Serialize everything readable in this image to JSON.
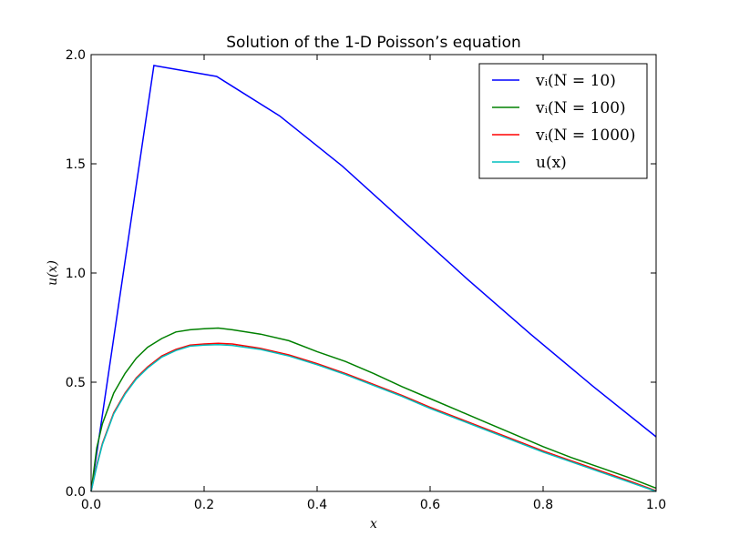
{
  "chart_data": {
    "type": "line",
    "title": "Solution of the 1-D Poisson’s equation",
    "xlabel": "x",
    "ylabel": "u(x)",
    "xlim": [
      0.0,
      1.0
    ],
    "ylim": [
      0.0,
      2.0
    ],
    "xticks": [
      "0.0",
      "0.2",
      "0.4",
      "0.6",
      "0.8",
      "1.0"
    ],
    "yticks": [
      "0.0",
      "0.5",
      "1.0",
      "1.5",
      "2.0"
    ],
    "grid": false,
    "legend_position": "top-right",
    "series": [
      {
        "name": "v_i(N = 10)",
        "label": "vᵢ(N = 10)",
        "color": "#0000ff",
        "x": [
          0.0,
          0.1111,
          0.2222,
          0.3333,
          0.4444,
          0.5556,
          0.6667,
          0.7778,
          0.8889,
          1.0
        ],
        "y": [
          0.0,
          1.95,
          1.9,
          1.72,
          1.49,
          1.23,
          0.97,
          0.72,
          0.48,
          0.25
        ]
      },
      {
        "name": "v_i(N = 100)",
        "label": "vᵢ(N = 100)",
        "color": "#008000",
        "x": [
          0.0,
          0.01,
          0.02,
          0.04,
          0.06,
          0.08,
          0.1,
          0.125,
          0.15,
          0.175,
          0.2,
          0.225,
          0.25,
          0.3,
          0.35,
          0.4,
          0.45,
          0.5,
          0.55,
          0.6,
          0.65,
          0.7,
          0.75,
          0.8,
          0.85,
          0.9,
          0.95,
          1.0
        ],
        "y": [
          0.0,
          0.2,
          0.31,
          0.45,
          0.54,
          0.61,
          0.66,
          0.7,
          0.73,
          0.74,
          0.745,
          0.748,
          0.74,
          0.72,
          0.69,
          0.64,
          0.595,
          0.54,
          0.48,
          0.425,
          0.37,
          0.315,
          0.26,
          0.205,
          0.155,
          0.11,
          0.065,
          0.015
        ]
      },
      {
        "name": "v_i(N = 1000)",
        "label": "vᵢ(N = 1000)",
        "color": "#ff0000",
        "x": [
          0.0,
          0.01,
          0.02,
          0.04,
          0.06,
          0.08,
          0.1,
          0.125,
          0.15,
          0.175,
          0.2,
          0.225,
          0.25,
          0.3,
          0.35,
          0.4,
          0.45,
          0.5,
          0.55,
          0.6,
          0.65,
          0.7,
          0.75,
          0.8,
          0.85,
          0.9,
          0.95,
          1.0
        ],
        "y": [
          0.0,
          0.12,
          0.22,
          0.36,
          0.45,
          0.52,
          0.57,
          0.62,
          0.65,
          0.67,
          0.675,
          0.678,
          0.675,
          0.655,
          0.625,
          0.585,
          0.54,
          0.49,
          0.44,
          0.385,
          0.335,
          0.285,
          0.235,
          0.185,
          0.14,
          0.095,
          0.05,
          0.003
        ]
      },
      {
        "name": "u(x)",
        "label": "u(x)",
        "color": "#00bfbf",
        "x": [
          0.0,
          0.01,
          0.02,
          0.04,
          0.06,
          0.08,
          0.1,
          0.125,
          0.15,
          0.175,
          0.2,
          0.225,
          0.25,
          0.3,
          0.35,
          0.4,
          0.45,
          0.5,
          0.55,
          0.6,
          0.65,
          0.7,
          0.75,
          0.8,
          0.85,
          0.9,
          0.95,
          1.0
        ],
        "y": [
          0.0,
          0.115,
          0.215,
          0.355,
          0.445,
          0.515,
          0.565,
          0.615,
          0.645,
          0.665,
          0.67,
          0.672,
          0.668,
          0.65,
          0.62,
          0.58,
          0.535,
          0.485,
          0.435,
          0.38,
          0.33,
          0.28,
          0.23,
          0.18,
          0.135,
          0.09,
          0.045,
          0.0
        ]
      }
    ]
  }
}
